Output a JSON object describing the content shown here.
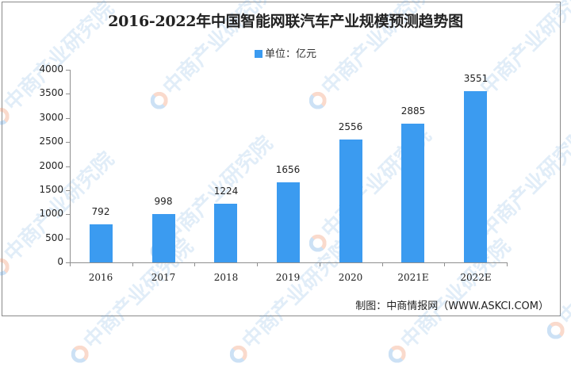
{
  "title": "2016-2022年中国智能网联汽车产业规模预测趋势图",
  "legend": {
    "label": "单位：亿元",
    "color": "#3b9bf0"
  },
  "source": "制图：中商情报网（WWW.ASKCI.COM）",
  "watermark": {
    "text": "中商产业研究院"
  },
  "y_ticks": [
    "0",
    "500",
    "1000",
    "1500",
    "2000",
    "2500",
    "3000",
    "3500",
    "4000"
  ],
  "chart_data": {
    "type": "bar",
    "title": "2016-2022年中国智能网联汽车产业规模预测趋势图",
    "xlabel": "",
    "ylabel": "",
    "unit": "亿元",
    "categories": [
      "2016",
      "2017",
      "2018",
      "2019",
      "2020",
      "2021E",
      "2022E"
    ],
    "series": [
      {
        "name": "单位：亿元",
        "values": [
          792,
          998,
          1224,
          1656,
          2556,
          2885,
          3551
        ],
        "color": "#3b9bf0"
      }
    ],
    "ylim": [
      0,
      4000
    ],
    "y_tick_step": 500,
    "grid": false,
    "legend_position": "top-center",
    "data_labels": true
  }
}
